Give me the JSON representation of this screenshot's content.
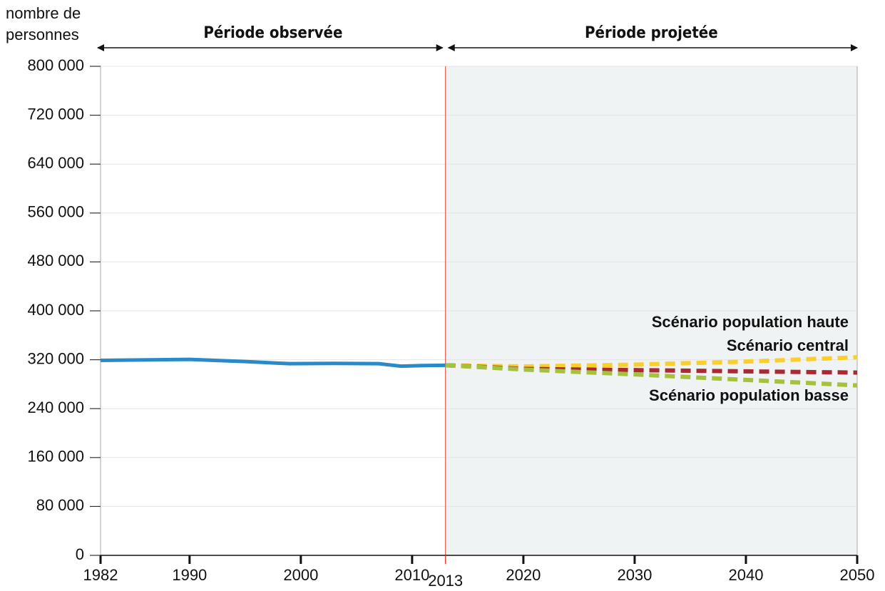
{
  "chart_data": {
    "type": "line",
    "y_label": "nombre de personnes",
    "periods": [
      {
        "label": "Période observée",
        "from": 1982,
        "to": 2013
      },
      {
        "label": "Période projetée",
        "from": 2013,
        "to": 2050
      }
    ],
    "divider": {
      "x": 2013,
      "color": "#e8412c",
      "shade": "#eff3f3"
    },
    "xlim": [
      1982,
      2050
    ],
    "xticks": [
      1982,
      1990,
      2000,
      2010,
      2013,
      2020,
      2030,
      2040,
      2050
    ],
    "ylim": [
      0,
      800000
    ],
    "yticks": [
      0,
      {
        "value": 80000,
        "label": "80 000"
      },
      {
        "value": 160000,
        "label": "160 000"
      },
      {
        "value": 240000,
        "label": "240 000"
      },
      {
        "value": 320000,
        "label": "320 000"
      },
      {
        "value": 400000,
        "label": "400 000"
      },
      {
        "value": 480000,
        "label": "480 000"
      },
      {
        "value": 560000,
        "label": "560 000"
      },
      {
        "value": 640000,
        "label": "640 000"
      },
      {
        "value": 720000,
        "label": "720 000"
      },
      {
        "value": 800000,
        "label": "800 000"
      }
    ],
    "grid": true,
    "series": [
      {
        "color": "#2a8ac9",
        "dashed": false,
        "x": [
          1982,
          1990,
          1995,
          1999,
          2003,
          2007,
          2009,
          2011,
          2013
        ],
        "values": [
          319000,
          320500,
          317000,
          313500,
          314000,
          313500,
          309500,
          310500,
          311000
        ]
      },
      {
        "name": "Scénario population haute",
        "color": "#fbcf2b",
        "dashed": true,
        "x": [
          2013,
          2020,
          2030,
          2040,
          2050
        ],
        "values": [
          311000,
          309000,
          312000,
          317000,
          324000
        ]
      },
      {
        "name": "Scénario central",
        "color": "#aa2a33",
        "dashed": true,
        "x": [
          2013,
          2020,
          2030,
          2040,
          2050
        ],
        "values": [
          311000,
          305000,
          303000,
          301000,
          299000
        ]
      },
      {
        "name": "Scénario population basse",
        "color": "#a4c23d",
        "dashed": true,
        "x": [
          2013,
          2020,
          2030,
          2040,
          2050
        ],
        "values": [
          311000,
          304000,
          296000,
          287000,
          278000
        ]
      }
    ]
  }
}
